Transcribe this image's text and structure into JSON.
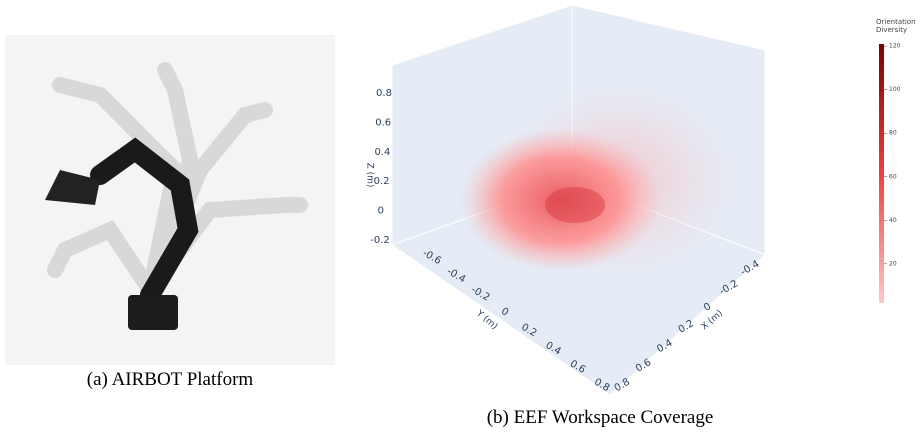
{
  "panel_a": {
    "caption": "(a) AIRBOT Platform"
  },
  "panel_b": {
    "caption": "(b) EEF Workspace Coverage",
    "z_axis": {
      "title": "Z (m)",
      "ticks": [
        -0.2,
        0,
        0.2,
        0.4,
        0.6,
        0.8
      ]
    },
    "y_axis": {
      "title": "Y (m)",
      "ticks": [
        -0.6,
        -0.4,
        -0.2,
        0,
        0.2,
        0.4,
        0.6,
        0.8
      ]
    },
    "x_axis": {
      "title": "X (m)",
      "ticks": [
        -0.4,
        -0.2,
        0,
        0.2,
        0.4,
        0.6,
        0.8
      ]
    },
    "colorbar": {
      "title": "Orientation Diversity",
      "range": [
        2,
        121
      ],
      "ticks": [
        20,
        40,
        60,
        80,
        100,
        120
      ]
    }
  }
}
